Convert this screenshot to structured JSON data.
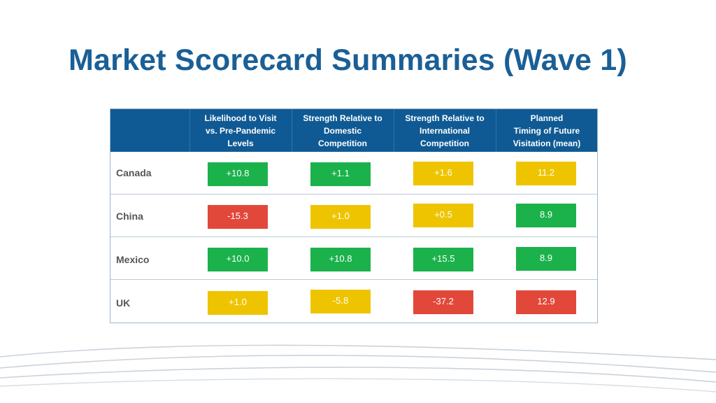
{
  "title": "Market Scorecard Summaries (Wave 1)",
  "colors": {
    "green": "#1bb24b",
    "yellow": "#eec400",
    "red": "#e2483a",
    "header": "#0f5a94"
  },
  "columns": [
    "Likelihood to Visit\nvs. Pre-Pandemic\nLevels",
    "Strength Relative to\nDomestic\nCompetition",
    "Strength Relative to\nInternational\nCompetition",
    "Planned\nTiming of Future\nVisitation (mean)"
  ],
  "rows": [
    {
      "label": "Canada",
      "cells": [
        {
          "value": "+10.8",
          "status": "green"
        },
        {
          "value": "+1.1",
          "status": "green"
        },
        {
          "value": "+1.6",
          "status": "yellow"
        },
        {
          "value": "11.2",
          "status": "yellow"
        }
      ]
    },
    {
      "label": "China",
      "cells": [
        {
          "value": "-15.3",
          "status": "red"
        },
        {
          "value": "+1.0",
          "status": "yellow"
        },
        {
          "value": "+0.5",
          "status": "yellow"
        },
        {
          "value": "8.9",
          "status": "green"
        }
      ]
    },
    {
      "label": "Mexico",
      "cells": [
        {
          "value": "+10.0",
          "status": "green"
        },
        {
          "value": "+10.8",
          "status": "green"
        },
        {
          "value": "+15.5",
          "status": "green"
        },
        {
          "value": "8.9",
          "status": "green"
        }
      ]
    },
    {
      "label": "UK",
      "cells": [
        {
          "value": "+1.0",
          "status": "yellow"
        },
        {
          "value": "-5.8",
          "status": "yellow"
        },
        {
          "value": "-37.2",
          "status": "red"
        },
        {
          "value": "12.9",
          "status": "red"
        }
      ]
    }
  ]
}
